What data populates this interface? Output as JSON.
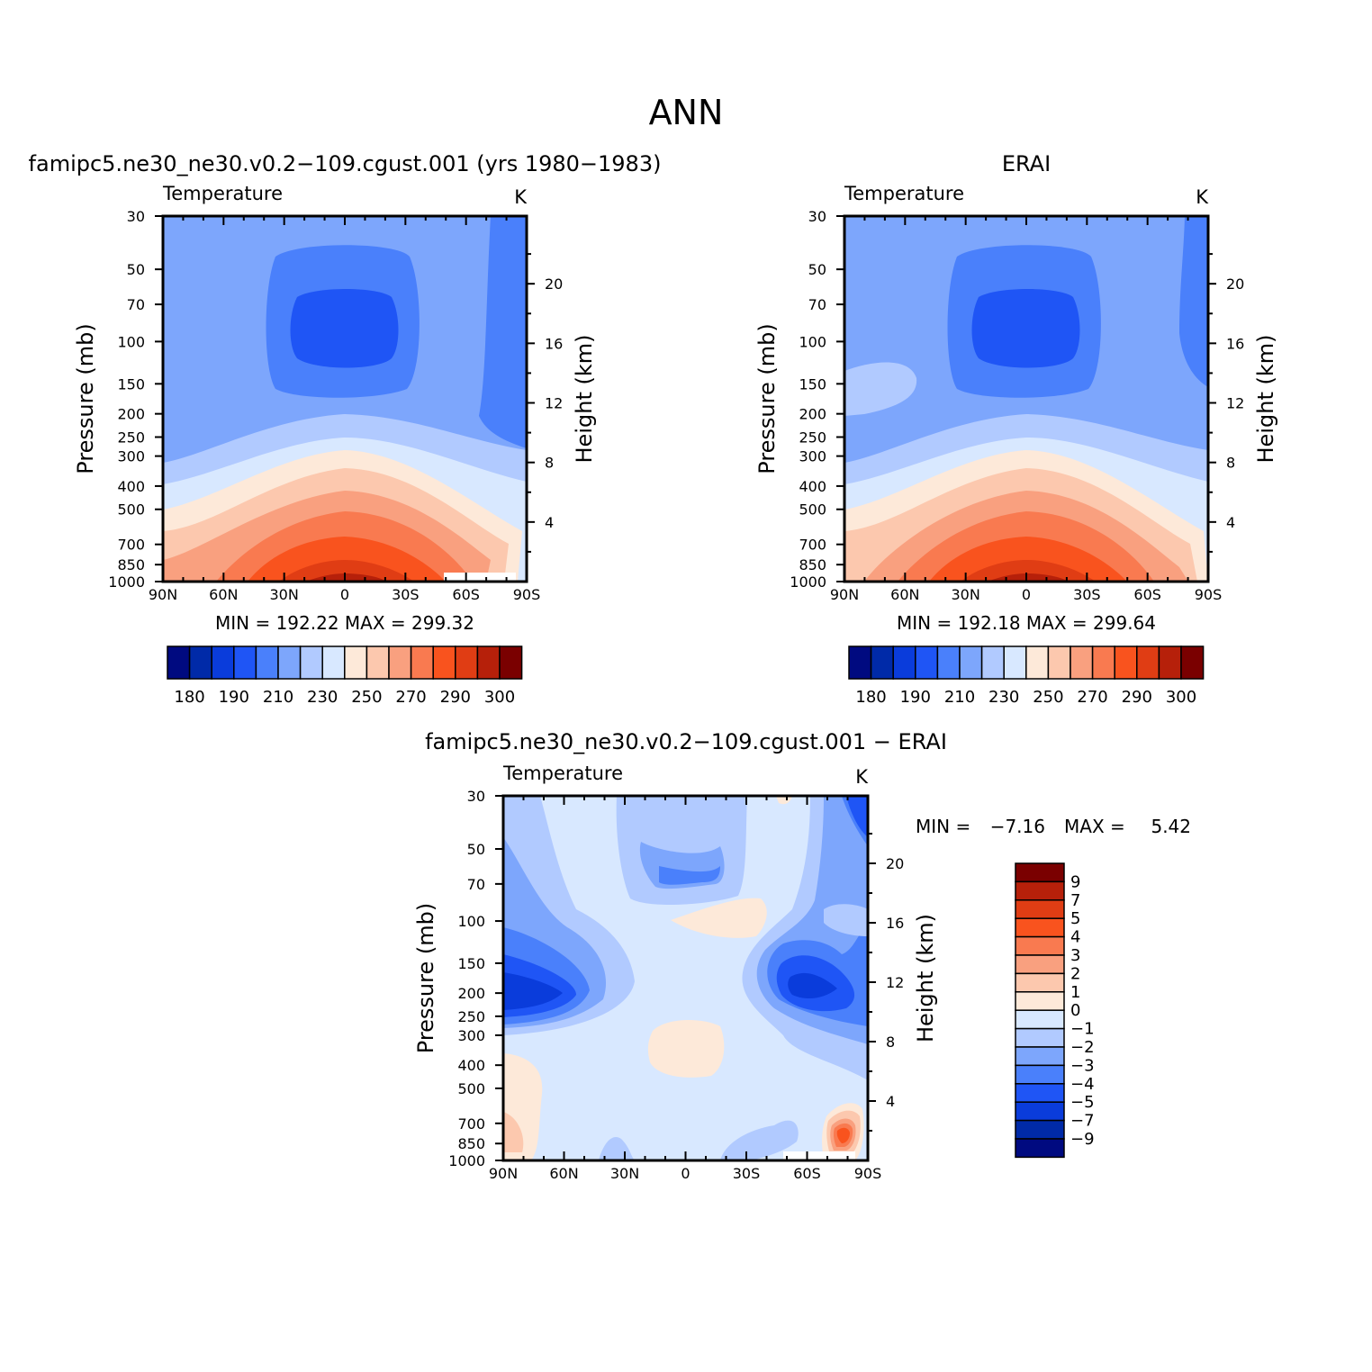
{
  "figure": {
    "title": "ANN"
  },
  "colors": {
    "abs_palette": [
      "#000a80",
      "#002aa8",
      "#0a3cdb",
      "#1f55f5",
      "#4a80fb",
      "#7da6fc",
      "#b1caff",
      "#d8e8ff",
      "#fde9d9",
      "#fcc8ae",
      "#f9a07f",
      "#f97a50",
      "#f9531e",
      "#e03d14",
      "#b6200a",
      "#7a0000"
    ],
    "diff_palette": [
      "#000a80",
      "#002aa8",
      "#0a3cdb",
      "#1f55f5",
      "#4a80fb",
      "#7da6fc",
      "#b1caff",
      "#d8e8ff",
      "#fde9d9",
      "#fcc8ae",
      "#f9a07f",
      "#f97a50",
      "#f9531e",
      "#e03d14",
      "#b6200a",
      "#7a0000"
    ]
  },
  "chart_data": [
    {
      "type": "heatmap",
      "title": "famipc5.ne30_ne30.v0.2−109.cgust.001 (yrs  1980−1983)",
      "variable": "Temperature",
      "units": "K",
      "xlabel": "",
      "ylabel": "Pressure  (mb)",
      "ylabel_right": "Height  (km)",
      "x_ticks": [
        "90N",
        "60N",
        "30N",
        "0",
        "30S",
        "60S",
        "90S"
      ],
      "y_ticks": [
        "30",
        "50",
        "70",
        "100",
        "150",
        "200",
        "250",
        "300",
        "400",
        "500",
        "700",
        "850",
        "1000"
      ],
      "y_right_ticks": [
        "20",
        "16",
        "12",
        "8",
        "4"
      ],
      "stats": "MIN =  192.22   MAX =  299.32",
      "colorbar_labels": [
        "180",
        "190",
        "210",
        "230",
        "250",
        "270",
        "290",
        "300"
      ],
      "ylim": [
        1000,
        30
      ],
      "xlim": [
        90,
        -90
      ],
      "features": {
        "tropopause_minimum_K": 192.22,
        "surface_maximum_K": 299.32
      }
    },
    {
      "type": "heatmap",
      "title": "ERAI",
      "variable": "Temperature",
      "units": "K",
      "xlabel": "",
      "ylabel": "Pressure  (mb)",
      "ylabel_right": "Height  (km)",
      "x_ticks": [
        "90N",
        "60N",
        "30N",
        "0",
        "30S",
        "60S",
        "90S"
      ],
      "y_ticks": [
        "30",
        "50",
        "70",
        "100",
        "150",
        "200",
        "250",
        "300",
        "400",
        "500",
        "700",
        "850",
        "1000"
      ],
      "y_right_ticks": [
        "20",
        "16",
        "12",
        "8",
        "4"
      ],
      "stats": "MIN =  192.18   MAX =  299.64",
      "colorbar_labels": [
        "180",
        "190",
        "210",
        "230",
        "250",
        "270",
        "290",
        "300"
      ],
      "ylim": [
        1000,
        30
      ],
      "xlim": [
        90,
        -90
      ],
      "features": {
        "tropopause_minimum_K": 192.18,
        "surface_maximum_K": 299.64
      }
    },
    {
      "type": "heatmap",
      "title": "famipc5.ne30_ne30.v0.2−109.cgust.001  −  ERAI",
      "variable": "Temperature",
      "units": "K",
      "xlabel": "",
      "ylabel": "Pressure  (mb)",
      "ylabel_right": "Height  (km)",
      "x_ticks": [
        "90N",
        "60N",
        "30N",
        "0",
        "30S",
        "60S",
        "90S"
      ],
      "y_ticks": [
        "30",
        "50",
        "70",
        "100",
        "150",
        "200",
        "250",
        "300",
        "400",
        "500",
        "700",
        "850",
        "1000"
      ],
      "y_right_ticks": [
        "20",
        "16",
        "12",
        "8",
        "4"
      ],
      "stats_min_label": "MIN =",
      "stats_min": "−7.16",
      "stats_max_label": "MAX =",
      "stats_max": "5.42",
      "colorbar_labels": [
        "9",
        "7",
        "5",
        "4",
        "3",
        "2",
        "1",
        "0",
        "−1",
        "−2",
        "−3",
        "−4",
        "−5",
        "−7",
        "−9"
      ],
      "ylim": [
        1000,
        30
      ],
      "xlim": [
        90,
        -90
      ],
      "features": {
        "min_difference_K": -7.16,
        "max_difference_K": 5.42
      }
    }
  ]
}
